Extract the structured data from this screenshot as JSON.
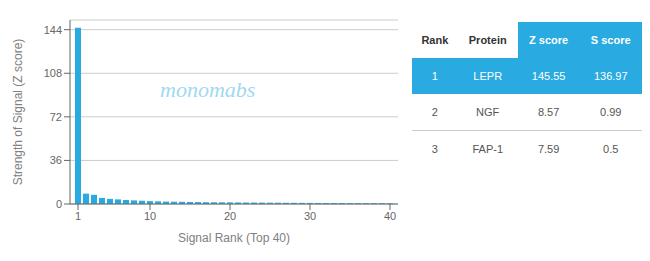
{
  "chart_data": {
    "type": "bar",
    "color": "#29ABE2",
    "x": [
      1,
      2,
      3,
      4,
      5,
      6,
      7,
      8,
      9,
      10,
      11,
      12,
      13,
      14,
      15,
      16,
      17,
      18,
      19,
      20,
      21,
      22,
      23,
      24,
      25,
      26,
      27,
      28,
      29,
      30,
      31,
      32,
      33,
      34,
      35,
      36,
      37,
      38,
      39,
      40
    ],
    "values": [
      145.55,
      8.57,
      7.59,
      5.0,
      4.2,
      3.8,
      3.3,
      3.0,
      2.7,
      2.4,
      2.2,
      2.0,
      1.9,
      1.8,
      1.7,
      1.6,
      1.5,
      1.45,
      1.4,
      1.35,
      1.3,
      1.25,
      1.2,
      1.15,
      1.1,
      1.05,
      1.0,
      0.97,
      0.94,
      0.91,
      0.88,
      0.85,
      0.82,
      0.79,
      0.76,
      0.73,
      0.7,
      0.67,
      0.64,
      0.61
    ],
    "xlim": [
      0,
      41
    ],
    "ylim": [
      0,
      152
    ],
    "xticks": [
      1,
      10,
      20,
      30,
      40
    ],
    "yticks": [
      0,
      36,
      72,
      108,
      144
    ],
    "xlabel": "Signal Rank (Top 40)",
    "ylabel": "Strength of Signal (Z score)",
    "grid": true,
    "annotations": [
      "monomabs"
    ],
    "table": {
      "header": [
        "Rank",
        "Protein",
        "Z score",
        "S score"
      ],
      "rows": [
        [
          "1",
          "LEPR",
          "145.55",
          "136.97"
        ],
        [
          "2",
          "NGF",
          "8.57",
          "0.99"
        ],
        [
          "3",
          "FAP-1",
          "7.59",
          "0.5"
        ]
      ]
    }
  }
}
